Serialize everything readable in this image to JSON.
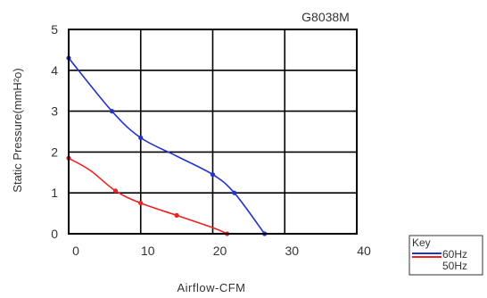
{
  "chart_data": {
    "type": "line",
    "title": "G8038M",
    "xlabel": "Airflow-CFM",
    "ylabel": "Static Pressure(mmH²o)",
    "xlim": [
      0,
      40
    ],
    "ylim": [
      0,
      5
    ],
    "x_ticks": [
      0,
      10,
      20,
      30,
      40
    ],
    "y_ticks": [
      0,
      1,
      2,
      3,
      4,
      5
    ],
    "x_tick_labels": [
      "0",
      "10",
      "20",
      "30",
      "40"
    ],
    "y_tick_labels": [
      "0",
      "1",
      "2",
      "3",
      "4",
      "5"
    ],
    "grid": true,
    "legend_placement": "bottom-right-outside",
    "legend_title": "Key",
    "series": [
      {
        "name": "60Hz",
        "color": "#2233cc",
        "points": [
          [
            0,
            4.3
          ],
          [
            6,
            3.0
          ],
          [
            10,
            2.35
          ],
          [
            15,
            1.9
          ],
          [
            20,
            1.45
          ],
          [
            23,
            1.0
          ],
          [
            27.2,
            0.0
          ]
        ],
        "markers": [
          [
            0,
            4.3
          ],
          [
            6,
            3.0
          ],
          [
            10,
            2.35
          ],
          [
            20,
            1.45
          ],
          [
            23,
            1.0
          ],
          [
            27.2,
            0.0
          ]
        ]
      },
      {
        "name": "50Hz",
        "color": "#ee2222",
        "points": [
          [
            0,
            1.85
          ],
          [
            3,
            1.55
          ],
          [
            6.5,
            1.05
          ],
          [
            10,
            0.75
          ],
          [
            15,
            0.45
          ],
          [
            20,
            0.15
          ],
          [
            22,
            0.0
          ]
        ],
        "markers": [
          [
            0,
            1.85
          ],
          [
            6.5,
            1.05
          ],
          [
            10,
            0.75
          ],
          [
            15,
            0.45
          ],
          [
            22,
            0.0
          ]
        ]
      }
    ]
  }
}
